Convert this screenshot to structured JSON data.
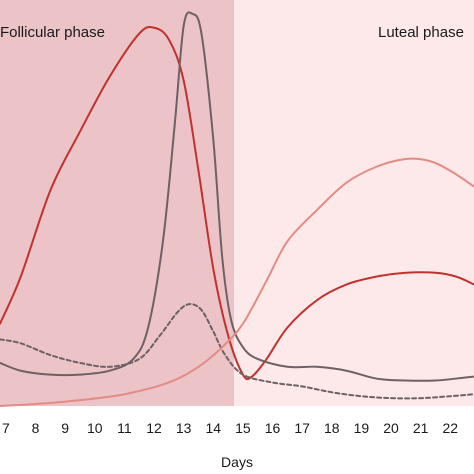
{
  "chart_data": {
    "type": "line",
    "title": "",
    "xlabel": "Days",
    "ylabel": "",
    "xlim": [
      6.8,
      22.8
    ],
    "ylim": [
      0,
      1
    ],
    "grid": false,
    "legend": "none",
    "phases": [
      {
        "label": "Follicular phase",
        "x_start": 6.8,
        "x_end": 14.7,
        "color": "#ecc3c6"
      },
      {
        "label": "Luteal phase",
        "x_start": 14.7,
        "x_end": 22.8,
        "color": "#fde9ea"
      }
    ],
    "x_ticks": [
      7,
      8,
      9,
      10,
      11,
      12,
      13,
      14,
      15,
      16,
      17,
      18,
      19,
      20,
      21,
      22
    ],
    "series": [
      {
        "color": "#c0322e",
        "style": "solid",
        "points": [
          [
            6.8,
            0.21
          ],
          [
            7.5,
            0.33
          ],
          [
            8.5,
            0.55
          ],
          [
            9.5,
            0.7
          ],
          [
            10.5,
            0.84
          ],
          [
            11.5,
            0.95
          ],
          [
            12.0,
            0.965
          ],
          [
            12.5,
            0.935
          ],
          [
            13.0,
            0.83
          ],
          [
            13.5,
            0.6
          ],
          [
            14.0,
            0.35
          ],
          [
            14.5,
            0.18
          ],
          [
            15.0,
            0.08
          ],
          [
            15.3,
            0.075
          ],
          [
            15.8,
            0.12
          ],
          [
            16.5,
            0.2
          ],
          [
            17.5,
            0.27
          ],
          [
            18.5,
            0.31
          ],
          [
            19.5,
            0.33
          ],
          [
            20.5,
            0.34
          ],
          [
            21.5,
            0.34
          ],
          [
            22.2,
            0.33
          ],
          [
            22.8,
            0.31
          ]
        ]
      },
      {
        "color": "#6e6164",
        "style": "solid",
        "points": [
          [
            6.8,
            0.11
          ],
          [
            7.5,
            0.09
          ],
          [
            8.5,
            0.08
          ],
          [
            9.5,
            0.08
          ],
          [
            10.5,
            0.09
          ],
          [
            11.3,
            0.12
          ],
          [
            11.8,
            0.2
          ],
          [
            12.3,
            0.42
          ],
          [
            12.7,
            0.72
          ],
          [
            13.0,
            0.97
          ],
          [
            13.3,
            1.0
          ],
          [
            13.6,
            0.95
          ],
          [
            14.0,
            0.68
          ],
          [
            14.3,
            0.38
          ],
          [
            14.6,
            0.22
          ],
          [
            15.0,
            0.15
          ],
          [
            15.5,
            0.12
          ],
          [
            16.5,
            0.1
          ],
          [
            17.5,
            0.1
          ],
          [
            18.5,
            0.09
          ],
          [
            19.5,
            0.07
          ],
          [
            20.5,
            0.065
          ],
          [
            21.5,
            0.065
          ],
          [
            22.2,
            0.07
          ],
          [
            22.8,
            0.075
          ]
        ]
      },
      {
        "color": "#6e6164",
        "style": "dashed",
        "points": [
          [
            6.8,
            0.17
          ],
          [
            7.5,
            0.16
          ],
          [
            8.5,
            0.13
          ],
          [
            9.5,
            0.11
          ],
          [
            10.5,
            0.1
          ],
          [
            11.5,
            0.12
          ],
          [
            12.2,
            0.18
          ],
          [
            12.8,
            0.24
          ],
          [
            13.2,
            0.26
          ],
          [
            13.6,
            0.245
          ],
          [
            14.0,
            0.19
          ],
          [
            14.4,
            0.13
          ],
          [
            15.0,
            0.08
          ],
          [
            16.0,
            0.06
          ],
          [
            17.0,
            0.05
          ],
          [
            18.0,
            0.035
          ],
          [
            19.0,
            0.025
          ],
          [
            20.0,
            0.02
          ],
          [
            21.0,
            0.02
          ],
          [
            22.0,
            0.025
          ],
          [
            22.8,
            0.03
          ]
        ]
      },
      {
        "color": "#e38b85",
        "style": "solid",
        "points": [
          [
            6.8,
            0.0
          ],
          [
            8.0,
            0.005
          ],
          [
            9.5,
            0.015
          ],
          [
            11.0,
            0.03
          ],
          [
            12.5,
            0.06
          ],
          [
            13.5,
            0.1
          ],
          [
            14.3,
            0.15
          ],
          [
            15.0,
            0.21
          ],
          [
            15.8,
            0.32
          ],
          [
            16.5,
            0.42
          ],
          [
            17.5,
            0.5
          ],
          [
            18.5,
            0.57
          ],
          [
            19.5,
            0.61
          ],
          [
            20.5,
            0.63
          ],
          [
            21.3,
            0.625
          ],
          [
            22.0,
            0.6
          ],
          [
            22.8,
            0.56
          ]
        ]
      }
    ]
  }
}
